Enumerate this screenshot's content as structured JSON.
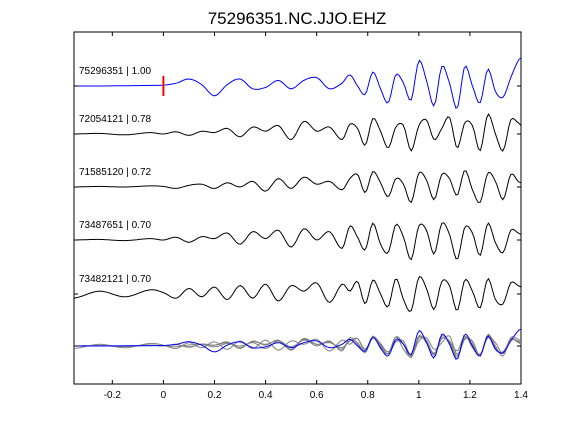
{
  "chart_data": {
    "type": "line",
    "title": "75296351.NC.JJO.EHZ",
    "xlabel": "",
    "ylabel": "",
    "xlim": [
      -0.35,
      1.4
    ],
    "xticks": [
      "-0.2",
      "0",
      "0.2",
      "0.4",
      "0.6",
      "0.8",
      "1",
      "1.2",
      "1.4"
    ],
    "grid": false,
    "pick_time": 0,
    "colors": {
      "reference": "#0000ff",
      "trace": "#000000",
      "stack": "#808080",
      "pick": "#ff0000"
    },
    "traces": [
      {
        "label": "75296351 | 1.00",
        "color": "reference",
        "t": [
          -0.35,
          -0.25,
          -0.15,
          -0.05,
          0.0,
          0.05,
          0.1,
          0.15,
          0.2,
          0.25,
          0.3,
          0.35,
          0.4,
          0.45,
          0.5,
          0.55,
          0.6,
          0.65,
          0.7,
          0.73,
          0.76,
          0.79,
          0.82,
          0.85,
          0.88,
          0.91,
          0.94,
          0.97,
          1.0,
          1.03,
          1.06,
          1.09,
          1.12,
          1.15,
          1.18,
          1.21,
          1.24,
          1.27,
          1.3,
          1.33,
          1.36,
          1.39,
          1.4
        ],
        "v": [
          0.0,
          0.0,
          0.01,
          0.02,
          0.03,
          0.1,
          0.25,
          0.05,
          -0.35,
          0.05,
          0.25,
          -0.1,
          -0.05,
          0.2,
          -0.1,
          0.2,
          0.3,
          -0.1,
          0.1,
          0.4,
          0.0,
          -0.3,
          0.5,
          -0.1,
          -0.6,
          0.4,
          0.1,
          -0.5,
          0.9,
          0.2,
          -0.7,
          0.7,
          0.1,
          -0.8,
          0.7,
          0.0,
          -0.6,
          0.6,
          -0.2,
          -0.4,
          0.3,
          0.9,
          1.0
        ]
      },
      {
        "label": "72054121 | 0.78",
        "color": "trace",
        "t": [
          -0.35,
          -0.25,
          -0.15,
          -0.05,
          0.0,
          0.05,
          0.1,
          0.15,
          0.2,
          0.25,
          0.3,
          0.35,
          0.4,
          0.45,
          0.5,
          0.55,
          0.6,
          0.65,
          0.7,
          0.73,
          0.76,
          0.79,
          0.82,
          0.85,
          0.88,
          0.91,
          0.94,
          0.97,
          1.0,
          1.03,
          1.06,
          1.09,
          1.12,
          1.15,
          1.18,
          1.21,
          1.24,
          1.27,
          1.3,
          1.33,
          1.36,
          1.39,
          1.4
        ],
        "v": [
          0.0,
          0.02,
          -0.03,
          0.05,
          0.0,
          0.08,
          -0.05,
          0.1,
          0.05,
          0.2,
          -0.1,
          0.25,
          0.1,
          0.3,
          -0.2,
          0.45,
          0.1,
          0.25,
          -0.2,
          0.35,
          0.2,
          -0.4,
          0.55,
          0.1,
          -0.5,
          0.25,
          0.3,
          -0.6,
          0.3,
          0.5,
          -0.2,
          0.2,
          0.6,
          -0.5,
          0.4,
          0.3,
          -0.6,
          0.7,
          0.0,
          -0.6,
          0.5,
          0.4,
          0.3
        ]
      },
      {
        "label": "71585120 | 0.72",
        "color": "trace",
        "t": [
          -0.35,
          -0.25,
          -0.15,
          -0.05,
          0.0,
          0.05,
          0.1,
          0.15,
          0.2,
          0.25,
          0.3,
          0.35,
          0.4,
          0.45,
          0.5,
          0.55,
          0.6,
          0.65,
          0.7,
          0.73,
          0.76,
          0.79,
          0.82,
          0.85,
          0.88,
          0.91,
          0.94,
          0.97,
          1.0,
          1.03,
          1.06,
          1.09,
          1.12,
          1.15,
          1.18,
          1.21,
          1.24,
          1.27,
          1.3,
          1.33,
          1.36,
          1.39,
          1.4
        ],
        "v": [
          0.0,
          0.02,
          0.0,
          0.04,
          0.02,
          -0.05,
          0.06,
          0.1,
          -0.05,
          0.15,
          0.0,
          0.2,
          -0.15,
          0.3,
          -0.05,
          0.35,
          0.1,
          0.2,
          -0.1,
          0.3,
          0.45,
          -0.2,
          0.55,
          0.15,
          -0.35,
          0.3,
          0.1,
          -0.55,
          0.5,
          0.25,
          -0.45,
          0.45,
          0.3,
          -0.3,
          0.6,
          -0.1,
          -0.55,
          0.5,
          0.2,
          -0.45,
          0.45,
          0.2,
          0.15
        ]
      },
      {
        "label": "73487651 | 0.70",
        "color": "trace",
        "t": [
          -0.35,
          -0.25,
          -0.15,
          -0.05,
          0.0,
          0.05,
          0.1,
          0.15,
          0.2,
          0.25,
          0.3,
          0.35,
          0.4,
          0.45,
          0.5,
          0.55,
          0.6,
          0.65,
          0.7,
          0.73,
          0.76,
          0.79,
          0.82,
          0.85,
          0.88,
          0.91,
          0.94,
          0.97,
          1.0,
          1.03,
          1.06,
          1.09,
          1.12,
          1.15,
          1.18,
          1.21,
          1.24,
          1.27,
          1.3,
          1.33,
          1.36,
          1.39,
          1.4
        ],
        "v": [
          0.0,
          0.02,
          -0.02,
          0.05,
          0.0,
          0.1,
          -0.08,
          0.12,
          0.05,
          0.25,
          -0.15,
          0.3,
          0.05,
          0.35,
          -0.25,
          0.4,
          0.0,
          0.3,
          -0.3,
          0.5,
          0.1,
          -0.35,
          0.6,
          -0.15,
          -0.45,
          0.55,
          0.1,
          -0.7,
          0.5,
          0.35,
          -0.5,
          0.6,
          0.2,
          -0.7,
          0.45,
          0.25,
          -0.55,
          0.6,
          -0.1,
          -0.45,
          0.35,
          0.25,
          0.2
        ]
      },
      {
        "label": "73482121 | 0.70",
        "color": "trace",
        "t": [
          -0.35,
          -0.25,
          -0.15,
          -0.05,
          0.0,
          0.05,
          0.1,
          0.15,
          0.2,
          0.25,
          0.3,
          0.35,
          0.4,
          0.45,
          0.5,
          0.55,
          0.6,
          0.65,
          0.7,
          0.73,
          0.76,
          0.79,
          0.82,
          0.85,
          0.88,
          0.91,
          0.94,
          0.97,
          1.0,
          1.03,
          1.06,
          1.09,
          1.12,
          1.15,
          1.18,
          1.21,
          1.24,
          1.27,
          1.3,
          1.33,
          1.36,
          1.39,
          1.4
        ],
        "v": [
          -0.15,
          0.1,
          -0.1,
          0.15,
          0.05,
          -0.15,
          0.2,
          -0.1,
          0.25,
          -0.2,
          0.3,
          -0.15,
          0.35,
          -0.25,
          0.3,
          0.1,
          0.4,
          -0.3,
          0.35,
          0.1,
          0.45,
          -0.35,
          0.5,
          0.0,
          -0.45,
          0.55,
          -0.2,
          -0.6,
          0.6,
          0.2,
          -0.55,
          0.45,
          0.3,
          -0.6,
          0.5,
          0.1,
          -0.5,
          0.55,
          -0.2,
          -0.35,
          0.4,
          0.3,
          0.25
        ]
      }
    ]
  }
}
